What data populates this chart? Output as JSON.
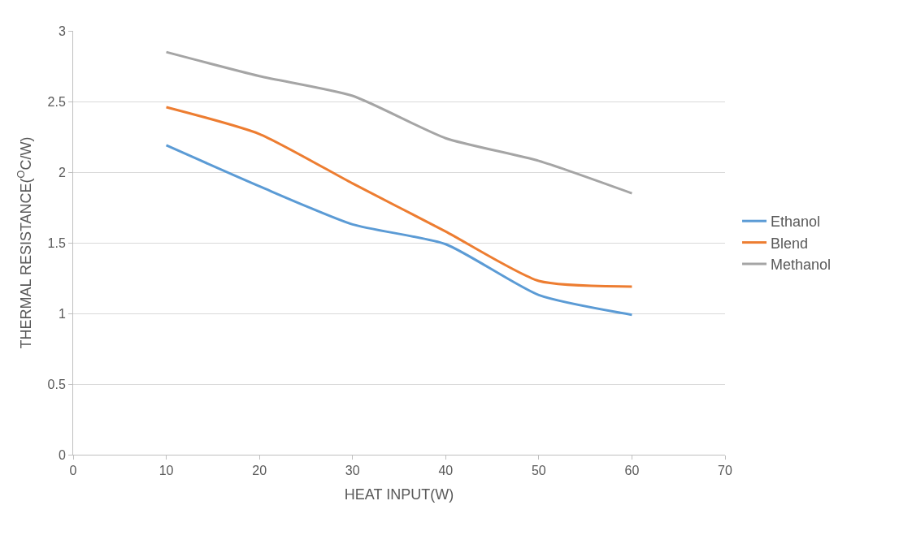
{
  "chart_data": {
    "type": "line",
    "xlabel": "HEAT INPUT(W)",
    "ylabel": "THERMAL RESISTANCE($^{O}$C/W)",
    "x": [
      10,
      20,
      30,
      40,
      50,
      60
    ],
    "series": [
      {
        "name": "Ethanol",
        "color": "#5b9bd5",
        "values": [
          2.19,
          1.9,
          1.63,
          1.49,
          1.13,
          0.99
        ]
      },
      {
        "name": "Blend",
        "color": "#ed7d31",
        "values": [
          2.46,
          2.27,
          1.92,
          1.58,
          1.23,
          1.19
        ]
      },
      {
        "name": "Methanol",
        "color": "#a5a5a5",
        "values": [
          2.85,
          2.68,
          2.54,
          2.24,
          2.08,
          1.85
        ]
      }
    ],
    "xlim": [
      0,
      70
    ],
    "xticks": [
      0,
      10,
      20,
      30,
      40,
      50,
      60,
      70
    ],
    "ylim": [
      0,
      3
    ],
    "yticks": [
      0,
      0.5,
      1,
      1.5,
      2,
      2.5,
      3
    ],
    "grid": "y",
    "legend": "right",
    "marker": "none",
    "line_style": "solid"
  }
}
